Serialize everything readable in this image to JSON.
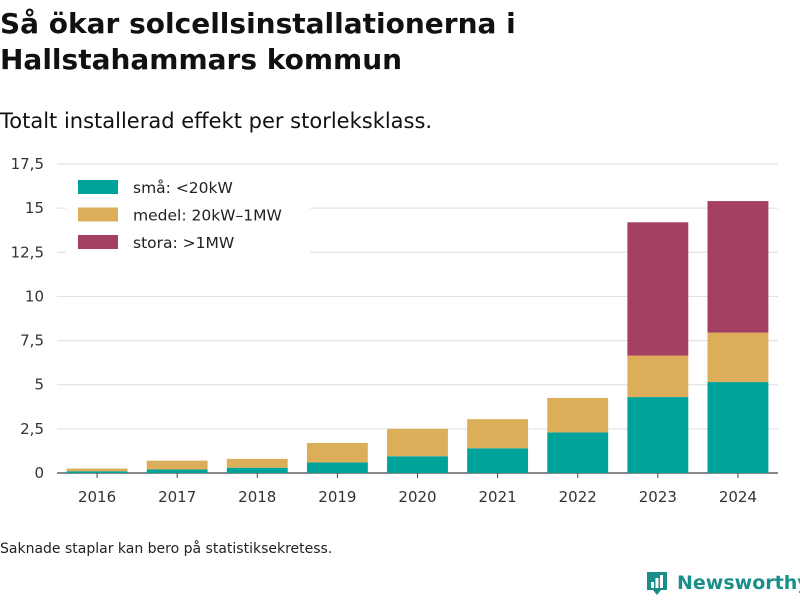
{
  "title": "Så ökar solcellsinstallationerna i Hallstahammars kommun",
  "subtitle": "Totalt installerad effekt per storleksklass.",
  "footnote": "Saknade staplar kan bero på statistiksekretess.",
  "brand": {
    "name": "Newsworthy",
    "icon": "bar-chart-logo-icon",
    "color": "#1a8f8a"
  },
  "chart_data": {
    "type": "bar",
    "stacked": true,
    "categories": [
      "2016",
      "2017",
      "2018",
      "2019",
      "2020",
      "2021",
      "2022",
      "2023",
      "2024"
    ],
    "series": [
      {
        "name": "små: <20kW",
        "color": "#00a39a",
        "values": [
          0.1,
          0.2,
          0.3,
          0.6,
          0.95,
          1.4,
          2.3,
          4.3,
          5.15
        ]
      },
      {
        "name": "medel: 20kW–1MW",
        "color": "#dcae59",
        "values": [
          0.15,
          0.5,
          0.5,
          1.1,
          1.55,
          1.65,
          1.95,
          2.35,
          2.8
        ]
      },
      {
        "name": "stora: >1MW",
        "color": "#a53f64",
        "values": [
          0,
          0,
          0,
          0,
          0,
          0,
          0,
          7.55,
          7.45
        ]
      }
    ],
    "yticks": [
      "0",
      "2,5",
      "5",
      "7,5",
      "10",
      "12,5",
      "15",
      "17,5"
    ],
    "ylim": [
      0,
      17.5
    ],
    "grid": true,
    "legend_position": "top-left"
  }
}
